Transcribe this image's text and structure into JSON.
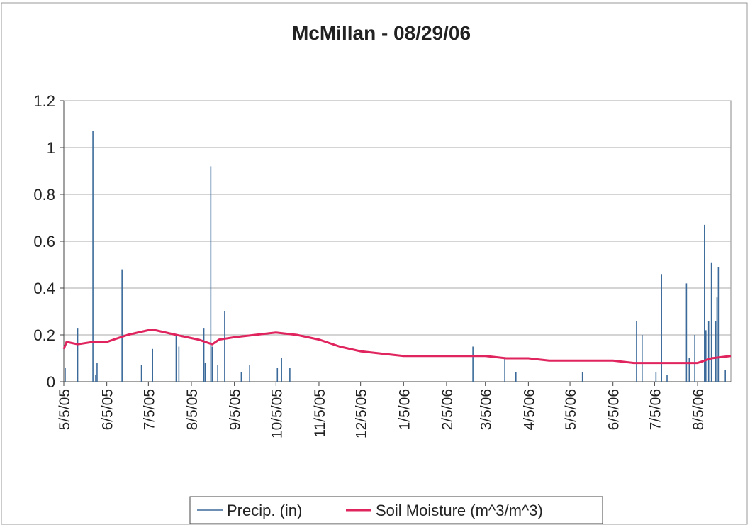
{
  "chart_data": {
    "type": "line",
    "title": "McMillan - 08/29/06",
    "xlim": [
      "2005-05-05",
      "2006-08-29"
    ],
    "xticks": [
      {
        "value": "2005-05-05",
        "label": "5/5/05"
      },
      {
        "value": "2005-06-05",
        "label": "6/5/05"
      },
      {
        "value": "2005-07-05",
        "label": "7/5/05"
      },
      {
        "value": "2005-08-05",
        "label": "8/5/05"
      },
      {
        "value": "2005-09-05",
        "label": "9/5/05"
      },
      {
        "value": "2005-10-05",
        "label": "10/5/05"
      },
      {
        "value": "2005-11-05",
        "label": "11/5/05"
      },
      {
        "value": "2005-12-05",
        "label": "12/5/05"
      },
      {
        "value": "2006-01-05",
        "label": "1/5/06"
      },
      {
        "value": "2006-02-05",
        "label": "2/5/06"
      },
      {
        "value": "2006-03-05",
        "label": "3/5/06"
      },
      {
        "value": "2006-04-05",
        "label": "4/5/06"
      },
      {
        "value": "2006-05-05",
        "label": "5/5/06"
      },
      {
        "value": "2006-06-05",
        "label": "6/5/06"
      },
      {
        "value": "2006-07-05",
        "label": "7/5/06"
      },
      {
        "value": "2006-08-05",
        "label": "8/5/06"
      }
    ],
    "ylim": [
      0,
      1.2
    ],
    "yticks": [
      0,
      0.2,
      0.4,
      0.6,
      0.8,
      1,
      1.2
    ],
    "grid": true,
    "legend": "bottom",
    "series": [
      {
        "name": "Precip. (in)",
        "color": "#3b6a9a",
        "style": "spike",
        "x": [
          "2005-05-06",
          "2005-05-15",
          "2005-05-26",
          "2005-05-28",
          "2005-05-29",
          "2005-06-16",
          "2005-06-30",
          "2005-07-08",
          "2005-07-25",
          "2005-07-27",
          "2005-08-14",
          "2005-08-15",
          "2005-08-19",
          "2005-08-20",
          "2005-08-24",
          "2005-08-29",
          "2005-09-10",
          "2005-09-16",
          "2005-10-06",
          "2005-10-09",
          "2005-10-15",
          "2006-02-24",
          "2006-03-19",
          "2006-03-27",
          "2006-05-14",
          "2006-06-22",
          "2006-06-26",
          "2006-07-06",
          "2006-07-10",
          "2006-07-14",
          "2006-07-28",
          "2006-07-30",
          "2006-08-03",
          "2006-08-10",
          "2006-08-11",
          "2006-08-13",
          "2006-08-15",
          "2006-08-18",
          "2006-08-19",
          "2006-08-20",
          "2006-08-25"
        ],
        "values": [
          0.06,
          0.23,
          1.07,
          0.03,
          0.08,
          0.48,
          0.07,
          0.14,
          0.2,
          0.15,
          0.23,
          0.08,
          0.92,
          0.15,
          0.07,
          0.3,
          0.04,
          0.07,
          0.06,
          0.1,
          0.06,
          0.15,
          0.1,
          0.04,
          0.04,
          0.26,
          0.2,
          0.04,
          0.46,
          0.03,
          0.42,
          0.1,
          0.2,
          0.67,
          0.22,
          0.26,
          0.51,
          0.26,
          0.36,
          0.49,
          0.05
        ]
      },
      {
        "name": "Soil Moisture (m^3/m^3)",
        "color": "#e0245e",
        "x": [
          "2005-05-05",
          "2005-05-07",
          "2005-05-15",
          "2005-05-26",
          "2005-06-05",
          "2005-06-20",
          "2005-07-05",
          "2005-07-10",
          "2005-07-25",
          "2005-08-10",
          "2005-08-20",
          "2005-08-25",
          "2005-09-05",
          "2005-09-20",
          "2005-10-05",
          "2005-10-20",
          "2005-11-05",
          "2005-11-20",
          "2005-12-05",
          "2005-12-20",
          "2006-01-05",
          "2006-01-20",
          "2006-02-05",
          "2006-02-20",
          "2006-03-05",
          "2006-03-20",
          "2006-04-05",
          "2006-04-20",
          "2006-05-05",
          "2006-05-20",
          "2006-06-05",
          "2006-06-20",
          "2006-07-05",
          "2006-07-20",
          "2006-08-05",
          "2006-08-15",
          "2006-08-29"
        ],
        "values": [
          0.14,
          0.17,
          0.16,
          0.17,
          0.17,
          0.2,
          0.22,
          0.22,
          0.2,
          0.18,
          0.16,
          0.18,
          0.19,
          0.2,
          0.21,
          0.2,
          0.18,
          0.15,
          0.13,
          0.12,
          0.11,
          0.11,
          0.11,
          0.11,
          0.11,
          0.1,
          0.1,
          0.09,
          0.09,
          0.09,
          0.09,
          0.08,
          0.08,
          0.08,
          0.08,
          0.1,
          0.11
        ]
      }
    ]
  }
}
